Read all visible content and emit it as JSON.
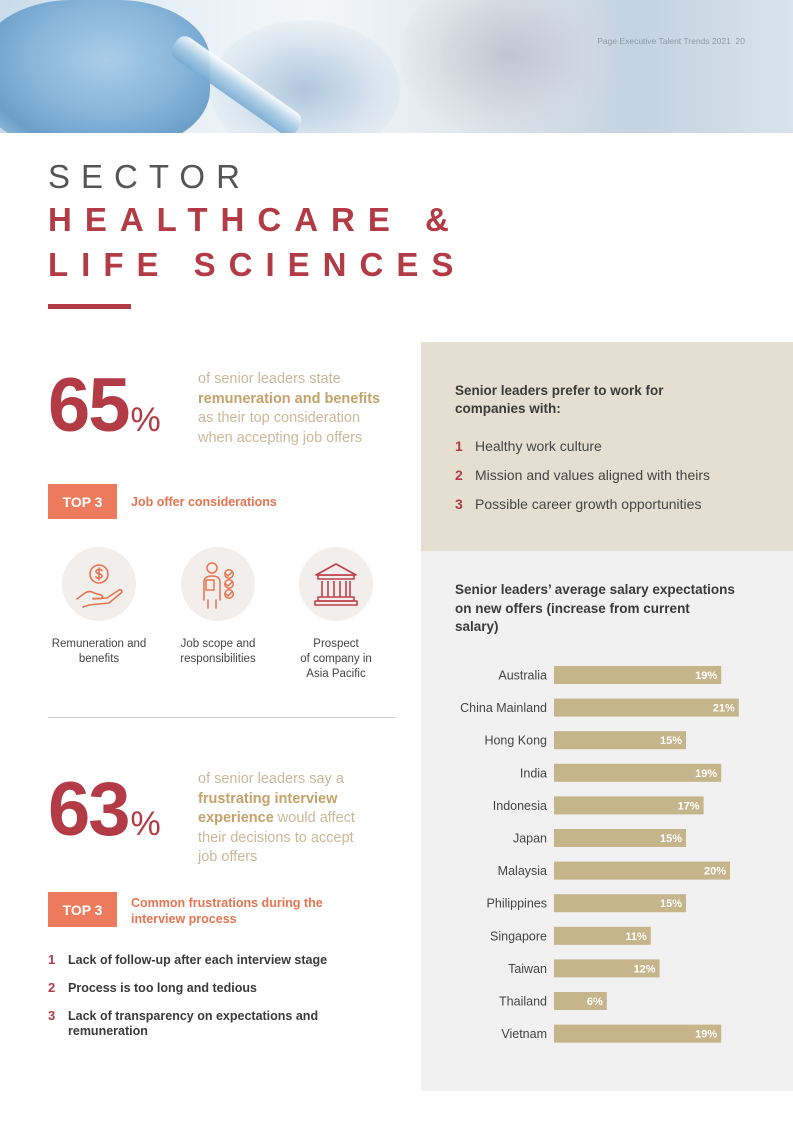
{
  "header": {
    "title": "Page Executive Talent Trends 2021",
    "page_number": "20"
  },
  "heading": {
    "kicker": "SECTOR",
    "line1": "HEALTHCARE &",
    "line2": "LIFE SCIENCES"
  },
  "stat1": {
    "number": "65",
    "unit": "%",
    "pre": "of senior leaders state",
    "bold": "remuneration and benefits",
    "line3": "as their top consideration",
    "line4": "when accepting job offers"
  },
  "top3_job": {
    "badge": "TOP 3",
    "caption": "Job offer considerations",
    "items": [
      {
        "icon": "money-hand-icon",
        "l1": "Remuneration and",
        "l2": "benefits",
        "l3": ""
      },
      {
        "icon": "checklist-person-icon",
        "l1": "Job scope and",
        "l2": "responsibilities",
        "l3": ""
      },
      {
        "icon": "bank-building-icon",
        "l1": "Prospect",
        "l2": "of company in",
        "l3": "Asia Pacific"
      }
    ]
  },
  "stat2": {
    "number": "63",
    "unit": "%",
    "l1": "of senior leaders say a",
    "bold1": "frustrating interview",
    "bold2": "experience",
    "l3rest": " would affect",
    "l4": "their decisions to accept",
    "l5": "job offers"
  },
  "top3_frustrations": {
    "badge": "TOP 3",
    "caption_l1": "Common frustrations during the",
    "caption_l2": "interview process",
    "items": [
      {
        "num": "1",
        "l1": "Lack of follow-up after each interview stage",
        "l2": ""
      },
      {
        "num": "2",
        "l1": "Process is too long and tedious",
        "l2": ""
      },
      {
        "num": "3",
        "l1": "Lack of transparency on expectations and",
        "l2": "remuneration"
      }
    ]
  },
  "preferences": {
    "title_l1": "Senior leaders prefer to work for",
    "title_l2": "companies with:",
    "items": [
      {
        "num": "1",
        "text": "Healthy work culture"
      },
      {
        "num": "2",
        "text": "Mission and values aligned with theirs"
      },
      {
        "num": "3",
        "text": "Possible career growth opportunities"
      }
    ]
  },
  "chart_title": {
    "l1": "Senior leaders’ average salary expectations",
    "l2": "on new offers (increase from current",
    "l3": "salary)"
  },
  "chart_data": {
    "type": "bar",
    "orientation": "horizontal",
    "categories": [
      "Australia",
      "China Mainland",
      "Hong Kong",
      "India",
      "Indonesia",
      "Japan",
      "Malaysia",
      "Philippines",
      "Singapore",
      "Taiwan",
      "Thailand",
      "Vietnam"
    ],
    "values": [
      19,
      21,
      15,
      19,
      17,
      15,
      20,
      15,
      11,
      12,
      6,
      19
    ],
    "value_suffix": "%",
    "bar_color": "#c6b48a",
    "label_color": "#ffffff"
  },
  "colors": {
    "accent_red": "#b23b45",
    "accent_orange": "#ef7b5e",
    "tan": "#c6b48a"
  }
}
